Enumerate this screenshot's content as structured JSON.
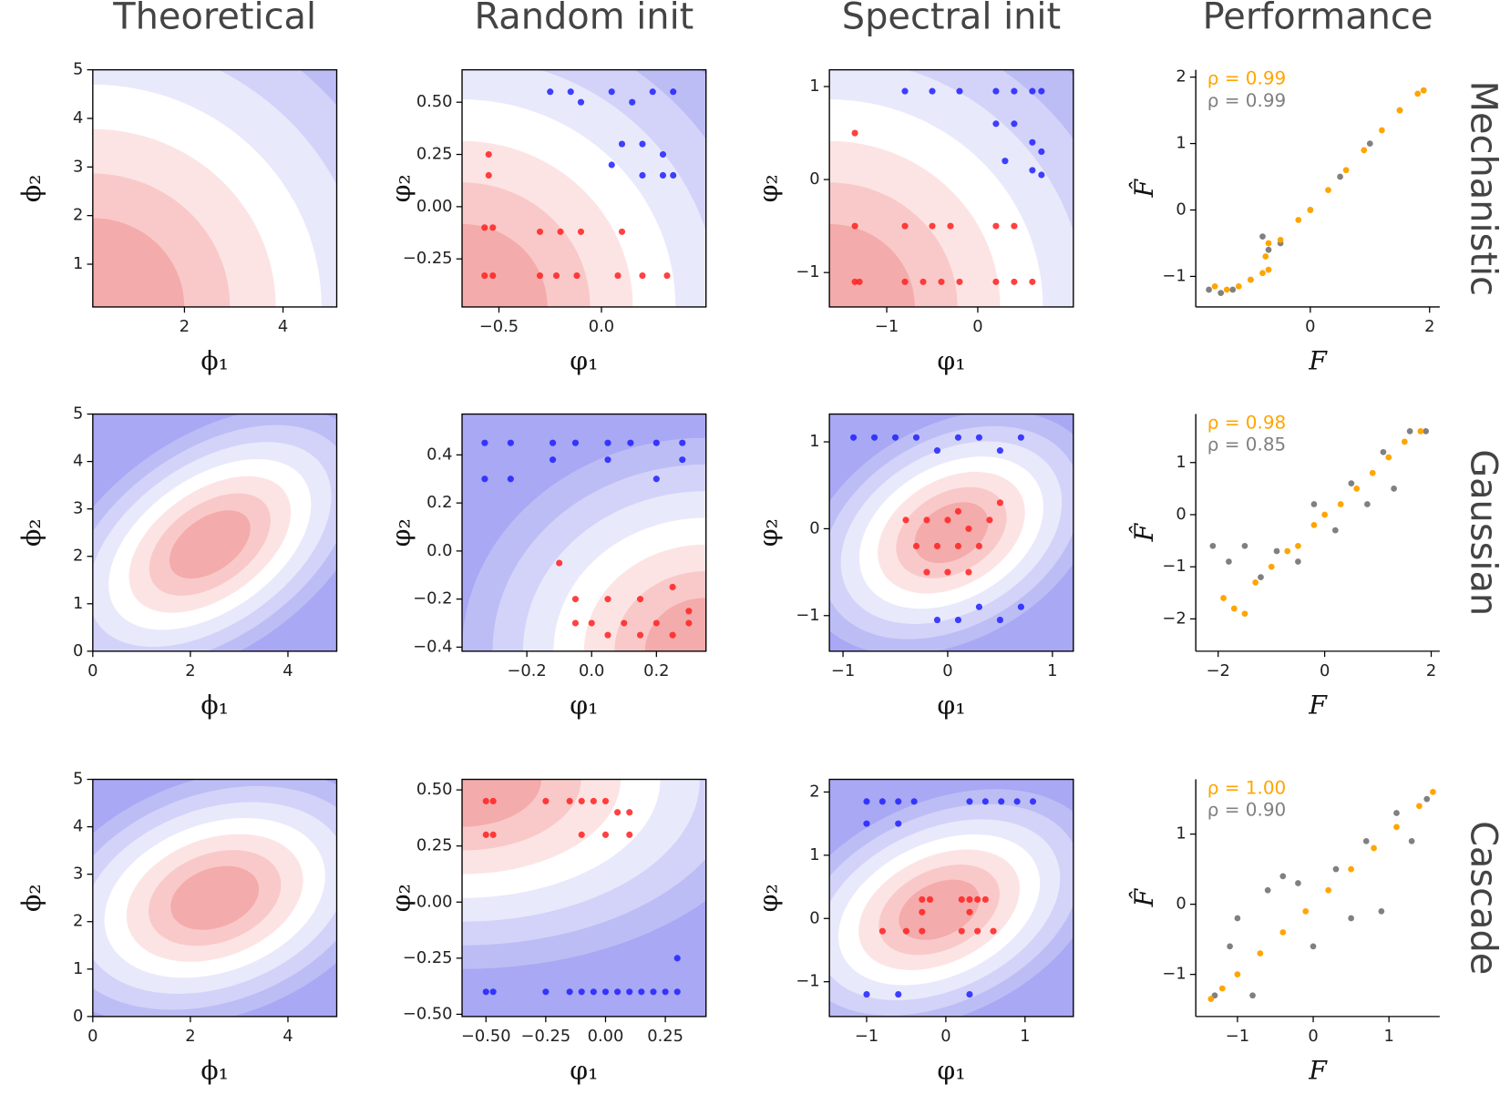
{
  "columns": [
    "Theoretical",
    "Random init",
    "Spectral init",
    "Performance"
  ],
  "rows": [
    "Mechanistic",
    "Gaussian",
    "Cascade"
  ],
  "chart_data": [
    {
      "type": "contour",
      "xlabel": "ϕ₁",
      "ylabel": "ϕ₂",
      "xlim": [
        0.14,
        5.09
      ],
      "ylim": [
        0.12,
        5
      ],
      "xticks": [
        2,
        4
      ],
      "yticks": [
        1,
        2,
        3,
        4,
        5
      ]
    },
    {
      "type": "contour-scatter",
      "xlabel": "φ₁",
      "ylabel": "φ₂",
      "xlim": [
        -0.68,
        0.51
      ],
      "ylim": [
        -0.48,
        0.655
      ],
      "xticks": [
        {
          "value": -0.5,
          "label": "−0.5"
        },
        {
          "value": 0,
          "label": "0.0"
        }
      ],
      "yticks": [
        {
          "value": -0.25,
          "label": "−0.25"
        },
        {
          "value": 0,
          "label": "0.00"
        },
        0.25,
        {
          "value": 0.5,
          "label": "0.50"
        }
      ],
      "series": [
        {
          "color": "#ff2020",
          "x": [
            -0.57,
            -0.53,
            -0.3,
            -0.22,
            -0.12,
            0.08,
            0.2,
            0.32,
            -0.57,
            -0.53,
            -0.3,
            -0.2,
            -0.1,
            0.1,
            -0.55,
            -0.55
          ],
          "y": [
            -0.33,
            -0.33,
            -0.33,
            -0.33,
            -0.33,
            -0.33,
            -0.33,
            -0.33,
            -0.1,
            -0.1,
            -0.12,
            -0.12,
            -0.12,
            -0.12,
            0.25,
            0.15
          ]
        },
        {
          "color": "#2020ff",
          "x": [
            -0.25,
            -0.15,
            -0.1,
            0.05,
            0.15,
            0.25,
            0.35,
            0.1,
            0.2,
            0.3,
            0.35,
            0.05,
            0.2,
            0.3
          ],
          "y": [
            0.55,
            0.55,
            0.5,
            0.55,
            0.5,
            0.55,
            0.55,
            0.3,
            0.3,
            0.25,
            0.15,
            0.2,
            0.15,
            0.15
          ]
        }
      ]
    },
    {
      "type": "contour-scatter",
      "xlabel": "φ₁",
      "ylabel": "φ₂",
      "xlim": [
        -1.63,
        1.05
      ],
      "ylim": [
        -1.37,
        1.18
      ],
      "xticks": [
        {
          "value": -1,
          "label": "−1"
        },
        0
      ],
      "yticks": [
        {
          "value": -1,
          "label": "−1"
        },
        0,
        1
      ],
      "series": [
        {
          "color": "#ff2020",
          "x": [
            -1.35,
            -1.3,
            -0.8,
            -0.6,
            -0.4,
            -0.2,
            0.2,
            0.4,
            0.6,
            -1.35,
            -0.8,
            -0.5,
            -0.3,
            0.2,
            0.4,
            -1.35
          ],
          "y": [
            -1.1,
            -1.1,
            -1.1,
            -1.1,
            -1.1,
            -1.1,
            -1.1,
            -1.1,
            -1.1,
            -0.5,
            -0.5,
            -0.5,
            -0.5,
            -0.5,
            -0.5,
            0.5
          ]
        },
        {
          "color": "#2020ff",
          "x": [
            -0.8,
            -0.5,
            -0.2,
            0.2,
            0.4,
            0.6,
            0.7,
            0.2,
            0.4,
            0.6,
            0.7,
            0.3,
            0.6,
            0.7
          ],
          "y": [
            0.95,
            0.95,
            0.95,
            0.95,
            0.95,
            0.95,
            0.95,
            0.6,
            0.6,
            0.4,
            0.3,
            0.2,
            0.1,
            0.05
          ]
        }
      ]
    },
    {
      "type": "scatter",
      "xlabel": "F",
      "ylabel": "F̂",
      "xlim": [
        -1.92,
        2.17
      ],
      "ylim": [
        -1.46,
        2.11
      ],
      "xticks": [
        0,
        2
      ],
      "yticks": [
        {
          "value": -1,
          "label": "−1"
        },
        0,
        1,
        2
      ],
      "annotations": [
        {
          "text": "ρ = 0.99",
          "color": "#ffa500"
        },
        {
          "text": "ρ = 0.99",
          "color": "#808080"
        }
      ],
      "series": [
        {
          "color": "#808080",
          "x": [
            -1.7,
            -1.5,
            -1.3,
            -1.0,
            -0.8,
            -0.7,
            -0.5,
            0.0,
            0.5,
            1.0,
            1.5,
            1.9
          ],
          "y": [
            -1.2,
            -1.25,
            -1.2,
            -1.05,
            -0.4,
            -0.6,
            -0.5,
            0.0,
            0.5,
            1.0,
            1.5,
            1.8
          ]
        },
        {
          "color": "#ffa500",
          "x": [
            -1.6,
            -1.4,
            -1.2,
            -1.0,
            -0.8,
            -0.75,
            -0.7,
            -0.7,
            -0.5,
            -0.2,
            0.0,
            0.3,
            0.6,
            0.9,
            1.2,
            1.5,
            1.8,
            1.9
          ],
          "y": [
            -1.15,
            -1.2,
            -1.15,
            -1.05,
            -0.95,
            -0.7,
            -0.5,
            -0.9,
            -0.45,
            -0.15,
            0.0,
            0.3,
            0.6,
            0.9,
            1.2,
            1.5,
            1.75,
            1.8
          ]
        }
      ]
    },
    {
      "type": "contour",
      "xlabel": "ϕ₁",
      "ylabel": "ϕ₂",
      "xlim": [
        0,
        5
      ],
      "ylim": [
        0,
        5
      ],
      "xticks": [
        0,
        2,
        4
      ],
      "yticks": [
        0,
        1,
        2,
        3,
        4,
        5
      ]
    },
    {
      "type": "contour-scatter",
      "xlabel": "φ₁",
      "ylabel": "φ₂",
      "xlim": [
        -0.4,
        0.353
      ],
      "ylim": [
        -0.417,
        0.57
      ],
      "xticks": [
        {
          "value": -0.2,
          "label": "−0.2"
        },
        {
          "value": 0,
          "label": "0.0"
        },
        0.2
      ],
      "yticks": [
        {
          "value": -0.4,
          "label": "−0.4"
        },
        {
          "value": -0.2,
          "label": "−0.2"
        },
        {
          "value": 0,
          "label": "0.0"
        },
        0.2,
        0.4
      ],
      "series": [
        {
          "color": "#2020ff",
          "x": [
            -0.33,
            -0.25,
            -0.12,
            -0.05,
            0.05,
            0.12,
            0.2,
            0.28,
            -0.33,
            -0.25,
            -0.12,
            0.05,
            0.2,
            0.28
          ],
          "y": [
            0.45,
            0.45,
            0.45,
            0.45,
            0.45,
            0.45,
            0.45,
            0.45,
            0.3,
            0.3,
            0.38,
            0.38,
            0.3,
            0.38
          ]
        },
        {
          "color": "#ff2020",
          "x": [
            -0.05,
            0.0,
            0.05,
            0.1,
            0.15,
            0.2,
            0.25,
            0.3,
            -0.05,
            0.05,
            0.15,
            0.25,
            0.3,
            -0.1
          ],
          "y": [
            -0.3,
            -0.3,
            -0.35,
            -0.3,
            -0.35,
            -0.3,
            -0.35,
            -0.3,
            -0.2,
            -0.2,
            -0.2,
            -0.15,
            -0.25,
            -0.05
          ]
        }
      ]
    },
    {
      "type": "contour-scatter",
      "xlabel": "φ₁",
      "ylabel": "φ₂",
      "xlim": [
        -1.13,
        1.2
      ],
      "ylim": [
        -1.41,
        1.32
      ],
      "xticks": [
        {
          "value": -1,
          "label": "−1"
        },
        0,
        1
      ],
      "yticks": [
        {
          "value": -1,
          "label": "−1"
        },
        0,
        1
      ],
      "series": [
        {
          "color": "#2020ff",
          "x": [
            -0.9,
            -0.7,
            -0.5,
            -0.3,
            -0.1,
            0.1,
            0.3,
            0.5,
            0.7,
            -0.1,
            0.1,
            0.3,
            0.5,
            0.7
          ],
          "y": [
            1.05,
            1.05,
            1.05,
            1.05,
            0.9,
            1.05,
            1.05,
            0.9,
            1.05,
            -1.05,
            -1.05,
            -0.9,
            -1.05,
            -0.9
          ]
        },
        {
          "color": "#ff2020",
          "x": [
            -0.4,
            -0.2,
            0.0,
            0.1,
            0.2,
            0.4,
            -0.3,
            -0.1,
            0.1,
            0.3,
            -0.2,
            0.0,
            0.2,
            0.5
          ],
          "y": [
            0.1,
            0.1,
            0.1,
            0.2,
            0.0,
            0.1,
            -0.2,
            -0.2,
            -0.2,
            -0.2,
            -0.5,
            -0.5,
            -0.5,
            0.3
          ]
        }
      ]
    },
    {
      "type": "scatter",
      "xlabel": "F",
      "ylabel": "F̂",
      "xlim": [
        -2.42,
        2.16
      ],
      "ylim": [
        -2.62,
        1.93
      ],
      "xticks": [
        {
          "value": -2,
          "label": "−2"
        },
        0,
        2
      ],
      "yticks": [
        {
          "value": -2,
          "label": "−2"
        },
        {
          "value": -1,
          "label": "−1"
        },
        0,
        1
      ],
      "annotations": [
        {
          "text": "ρ = 0.98",
          "color": "#ffa500"
        },
        {
          "text": "ρ = 0.85",
          "color": "#808080"
        }
      ],
      "series": [
        {
          "color": "#808080",
          "x": [
            -2.1,
            -1.8,
            -1.5,
            -1.2,
            -0.9,
            -0.5,
            -0.2,
            0.2,
            0.5,
            0.8,
            1.1,
            1.3,
            1.6,
            1.9
          ],
          "y": [
            -0.6,
            -0.9,
            -0.6,
            -1.2,
            -0.7,
            -0.9,
            0.2,
            -0.3,
            0.6,
            0.2,
            1.2,
            0.5,
            1.6,
            1.6
          ]
        },
        {
          "color": "#ffa500",
          "x": [
            -1.9,
            -1.7,
            -1.5,
            -1.3,
            -1.0,
            -0.7,
            -0.5,
            -0.2,
            0.0,
            0.3,
            0.6,
            0.9,
            1.2,
            1.5,
            1.8
          ],
          "y": [
            -1.6,
            -1.8,
            -1.9,
            -1.3,
            -1.0,
            -0.7,
            -0.6,
            -0.2,
            0.0,
            0.2,
            0.5,
            0.8,
            1.1,
            1.4,
            1.6
          ]
        }
      ]
    },
    {
      "type": "contour",
      "xlabel": "ϕ₁",
      "ylabel": "ϕ₂",
      "xlim": [
        0,
        5
      ],
      "ylim": [
        0,
        5
      ],
      "xticks": [
        0,
        2,
        4
      ],
      "yticks": [
        0,
        1,
        2,
        3,
        4,
        5
      ]
    },
    {
      "type": "contour-scatter",
      "xlabel": "φ₁",
      "ylabel": "φ₂",
      "xlim": [
        -0.6,
        0.42
      ],
      "ylim": [
        -0.51,
        0.547
      ],
      "xticks": [
        {
          "value": -0.5,
          "label": "−0.50"
        },
        {
          "value": -0.25,
          "label": "−0.25"
        },
        {
          "value": 0,
          "label": "0.00"
        },
        0.25
      ],
      "yticks": [
        {
          "value": -0.5,
          "label": "−0.50"
        },
        {
          "value": -0.25,
          "label": "−0.25"
        },
        {
          "value": 0,
          "label": "0.00"
        },
        0.25,
        {
          "value": 0.5,
          "label": "0.50"
        }
      ],
      "series": [
        {
          "color": "#ff2020",
          "x": [
            -0.5,
            -0.47,
            -0.25,
            -0.15,
            -0.1,
            -0.05,
            0.0,
            0.05,
            0.1,
            -0.5,
            -0.47,
            -0.1,
            0.0,
            0.1
          ],
          "y": [
            0.45,
            0.45,
            0.45,
            0.45,
            0.45,
            0.45,
            0.45,
            0.4,
            0.4,
            0.3,
            0.3,
            0.3,
            0.3,
            0.3
          ]
        },
        {
          "color": "#2020ff",
          "x": [
            -0.5,
            -0.47,
            -0.25,
            -0.15,
            -0.1,
            -0.05,
            0.0,
            0.05,
            0.1,
            0.15,
            0.2,
            0.25,
            0.3,
            0.3
          ],
          "y": [
            -0.4,
            -0.4,
            -0.4,
            -0.4,
            -0.4,
            -0.4,
            -0.4,
            -0.4,
            -0.4,
            -0.4,
            -0.4,
            -0.4,
            -0.4,
            -0.25
          ]
        }
      ]
    },
    {
      "type": "contour-scatter",
      "xlabel": "φ₁",
      "ylabel": "φ₂",
      "xlim": [
        -1.47,
        1.61
      ],
      "ylim": [
        -1.55,
        2.2
      ],
      "xticks": [
        {
          "value": -1,
          "label": "−1"
        },
        0,
        1
      ],
      "yticks": [
        {
          "value": -1,
          "label": "−1"
        },
        0,
        1,
        2
      ],
      "series": [
        {
          "color": "#2020ff",
          "x": [
            -1.0,
            -0.8,
            -0.6,
            -0.4,
            -1.0,
            -0.6,
            0.3,
            0.5,
            0.7,
            0.9,
            1.1,
            -1.0,
            -0.6,
            0.3
          ],
          "y": [
            1.85,
            1.85,
            1.85,
            1.85,
            1.5,
            1.5,
            1.85,
            1.85,
            1.85,
            1.85,
            1.85,
            -1.2,
            -1.2,
            -1.2
          ]
        },
        {
          "color": "#ff2020",
          "x": [
            -0.3,
            -0.2,
            0.2,
            0.3,
            0.4,
            0.5,
            -0.8,
            -0.5,
            -0.3,
            0.2,
            0.4,
            0.6,
            -0.3,
            0.3
          ],
          "y": [
            0.3,
            0.3,
            0.3,
            0.3,
            0.3,
            0.3,
            -0.2,
            -0.2,
            -0.2,
            -0.2,
            -0.2,
            -0.2,
            0.1,
            0.1
          ]
        }
      ]
    },
    {
      "type": "scatter",
      "xlabel": "F",
      "ylabel": "F̂",
      "xlim": [
        -1.55,
        1.67
      ],
      "ylim": [
        -1.6,
        1.78
      ],
      "xticks": [
        {
          "value": -1,
          "label": "−1"
        },
        0,
        1
      ],
      "yticks": [
        {
          "value": -1,
          "label": "−1"
        },
        0,
        1
      ],
      "annotations": [
        {
          "text": "ρ = 1.00",
          "color": "#ffa500"
        },
        {
          "text": "ρ = 0.90",
          "color": "#808080"
        }
      ],
      "series": [
        {
          "color": "#808080",
          "x": [
            -1.3,
            -1.1,
            -1.0,
            -0.8,
            -0.6,
            -0.4,
            -0.2,
            0.0,
            0.3,
            0.5,
            0.7,
            0.9,
            1.1,
            1.3,
            1.5
          ],
          "y": [
            -1.3,
            -0.6,
            -0.2,
            -1.3,
            0.2,
            0.4,
            0.3,
            -0.6,
            0.5,
            -0.2,
            0.9,
            -0.1,
            1.3,
            0.9,
            1.5
          ]
        },
        {
          "color": "#ffa500",
          "x": [
            -1.35,
            -1.2,
            -1.0,
            -0.7,
            -0.4,
            -0.1,
            0.2,
            0.5,
            0.8,
            1.1,
            1.4,
            1.58
          ],
          "y": [
            -1.35,
            -1.2,
            -1.0,
            -0.7,
            -0.4,
            -0.1,
            0.2,
            0.5,
            0.8,
            1.1,
            1.4,
            1.6
          ]
        }
      ]
    }
  ]
}
